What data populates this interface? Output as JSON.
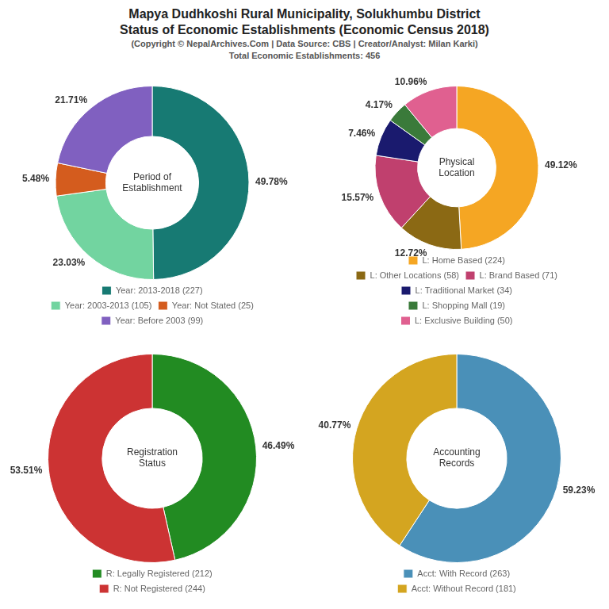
{
  "title": [
    "Mapya Dudhkoshi Rural Municipality, Solukhumbu District",
    "Status of Economic Establishments (Economic Census 2018)"
  ],
  "subtitle": [
    "(Copyright © NepalArchives.Com | Data Source: CBS | Creator/Analyst: Milan Karki)",
    "Total Economic Establishments: 456"
  ],
  "chart_data": [
    {
      "type": "doughnut",
      "title": "Period of\nEstablishment",
      "categories": [
        "Year: 2013-2018 (227)",
        "Year: 2003-2013 (105)",
        "Year: Not Stated (25)",
        "Year: Before 2003 (99)"
      ],
      "values": [
        49.78,
        23.03,
        5.48,
        21.71
      ],
      "value_labels": [
        "49.78%",
        "23.03%",
        "5.48%",
        "21.71%"
      ],
      "colors": [
        "#177a73",
        "#72d4a0",
        "#d45c1e",
        "#8060c0"
      ],
      "data_labels": true,
      "legend": "bottom"
    },
    {
      "type": "doughnut",
      "title": "Physical\nLocation",
      "categories": [
        "L: Home Based (224)",
        "L: Other Locations (58)",
        "L: Brand Based (71)",
        "L: Traditional Market (34)",
        "L: Shopping Mall (19)",
        "L: Exclusive Building (50)"
      ],
      "values": [
        49.12,
        12.72,
        15.57,
        7.46,
        4.17,
        10.96
      ],
      "value_labels": [
        "49.12%",
        "12.72%",
        "15.57%",
        "7.46%",
        "4.17%",
        "10.96%"
      ],
      "colors": [
        "#f5a623",
        "#8B6914",
        "#c0406e",
        "#1a1a6e",
        "#3a7a3a",
        "#e06090"
      ],
      "data_labels": true,
      "legend": "bottom"
    },
    {
      "type": "doughnut",
      "title": "Registration\nStatus",
      "categories": [
        "R: Legally Registered (212)",
        "R: Not Registered (244)"
      ],
      "values": [
        46.49,
        53.51
      ],
      "value_labels": [
        "46.49%",
        "53.51%"
      ],
      "colors": [
        "#228B22",
        "#cc3333"
      ],
      "data_labels": true,
      "legend": "bottom"
    },
    {
      "type": "doughnut",
      "title": "Accounting\nRecords",
      "categories": [
        "Acct: With Record (263)",
        "Acct: Without Record (181)"
      ],
      "values": [
        59.23,
        40.77
      ],
      "value_labels": [
        "59.23%",
        "40.77%"
      ],
      "colors": [
        "#4a90b8",
        "#d4a520"
      ],
      "data_labels": true,
      "legend": "bottom"
    }
  ]
}
